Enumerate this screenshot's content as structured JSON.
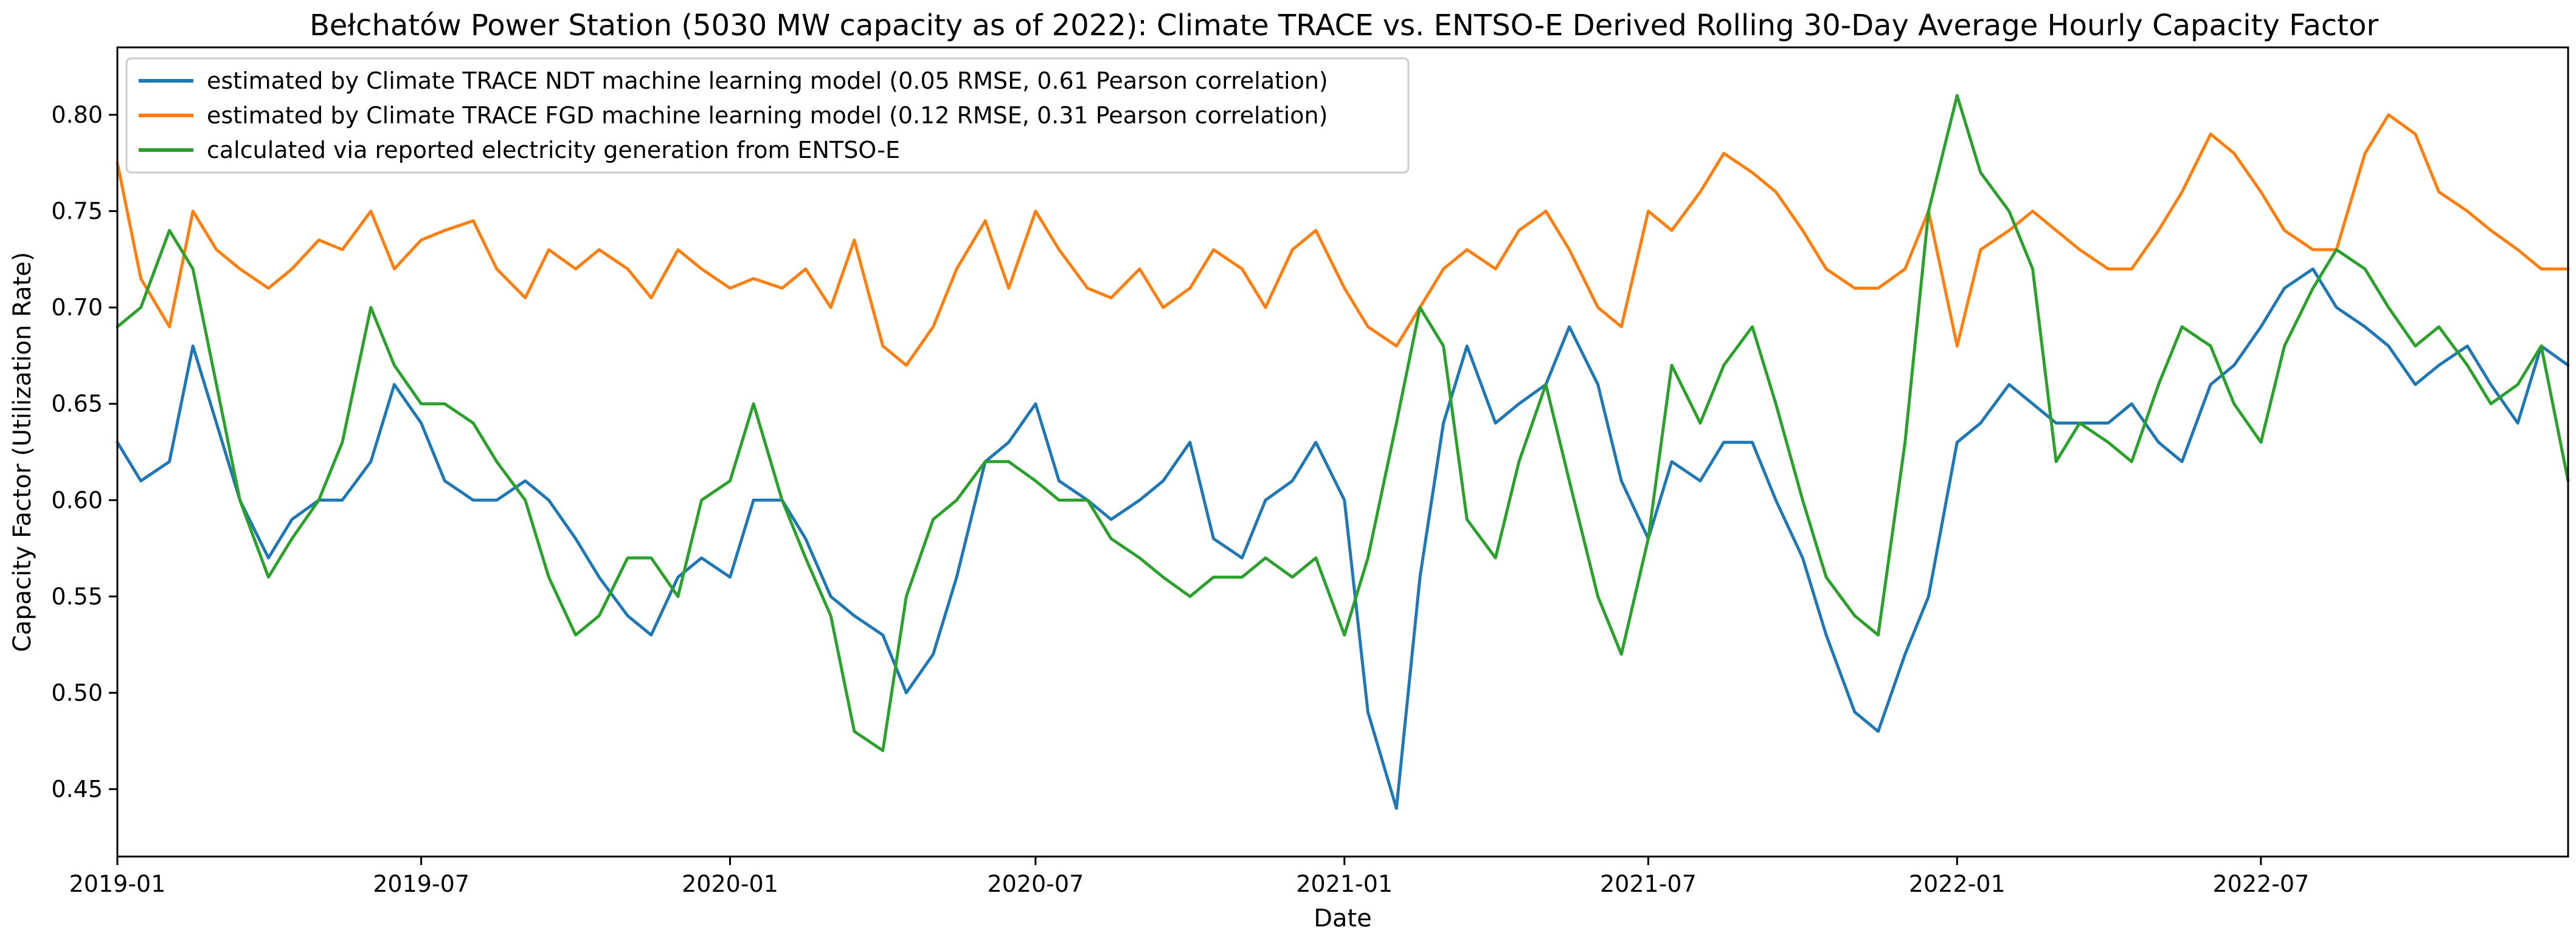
{
  "chart_data": {
    "type": "line",
    "title": "Bełchatów Power Station (5030 MW capacity as of 2022): Climate TRACE vs. ENTSO-E Derived Rolling 30-Day Average Hourly Capacity Factor",
    "xlabel": "Date",
    "ylabel": "Capacity Factor (Utilization Rate)",
    "xlim": [
      "2019-01-01",
      "2022-12-31"
    ],
    "ylim": [
      0.415,
      0.835
    ],
    "x_ticks": [
      "2019-01",
      "2019-07",
      "2020-01",
      "2020-07",
      "2021-01",
      "2021-07",
      "2022-01",
      "2022-07"
    ],
    "y_ticks": [
      "0.45",
      "0.50",
      "0.55",
      "0.60",
      "0.65",
      "0.70",
      "0.75",
      "0.80"
    ],
    "grid": false,
    "legend_position": "top-left",
    "x_step": "approximately 2 weeks (24 points per year)",
    "series": [
      {
        "name": "estimated by Climate TRACE NDT machine learning model (0.05 RMSE, 0.61 Pearson correlation)",
        "color": "#1f77b4",
        "x": [
          "2019-01-01",
          "2019-01-15",
          "2019-02-01",
          "2019-02-15",
          "2019-03-01",
          "2019-03-15",
          "2019-04-01",
          "2019-04-15",
          "2019-05-01",
          "2019-05-15",
          "2019-06-01",
          "2019-06-15",
          "2019-07-01",
          "2019-07-15",
          "2019-08-01",
          "2019-08-15",
          "2019-09-01",
          "2019-09-15",
          "2019-10-01",
          "2019-10-15",
          "2019-11-01",
          "2019-11-15",
          "2019-12-01",
          "2019-12-15",
          "2020-01-01",
          "2020-01-15",
          "2020-02-01",
          "2020-02-15",
          "2020-03-01",
          "2020-03-15",
          "2020-04-01",
          "2020-04-15",
          "2020-05-01",
          "2020-05-15",
          "2020-06-01",
          "2020-06-15",
          "2020-07-01",
          "2020-07-15",
          "2020-08-01",
          "2020-08-15",
          "2020-09-01",
          "2020-09-15",
          "2020-10-01",
          "2020-10-15",
          "2020-11-01",
          "2020-11-15",
          "2020-12-01",
          "2020-12-15",
          "2021-01-01",
          "2021-01-15",
          "2021-02-01",
          "2021-02-15",
          "2021-03-01",
          "2021-03-15",
          "2021-04-01",
          "2021-04-15",
          "2021-05-01",
          "2021-05-15",
          "2021-06-01",
          "2021-06-15",
          "2021-07-01",
          "2021-07-15",
          "2021-08-01",
          "2021-08-15",
          "2021-09-01",
          "2021-09-15",
          "2021-10-01",
          "2021-10-15",
          "2021-11-01",
          "2021-11-15",
          "2021-12-01",
          "2021-12-15",
          "2022-01-01",
          "2022-01-15",
          "2022-02-01",
          "2022-02-15",
          "2022-03-01",
          "2022-03-15",
          "2022-04-01",
          "2022-04-15",
          "2022-05-01",
          "2022-05-15",
          "2022-06-01",
          "2022-06-15",
          "2022-07-01",
          "2022-07-15",
          "2022-08-01",
          "2022-08-15",
          "2022-09-01",
          "2022-09-15",
          "2022-10-01",
          "2022-10-15",
          "2022-11-01",
          "2022-11-15",
          "2022-12-01",
          "2022-12-15",
          "2022-12-31"
        ],
        "values": [
          0.63,
          0.61,
          0.62,
          0.68,
          0.64,
          0.6,
          0.57,
          0.59,
          0.6,
          0.6,
          0.62,
          0.66,
          0.64,
          0.61,
          0.6,
          0.6,
          0.61,
          0.6,
          0.58,
          0.56,
          0.54,
          0.53,
          0.56,
          0.57,
          0.56,
          0.6,
          0.6,
          0.58,
          0.55,
          0.54,
          0.53,
          0.5,
          0.52,
          0.56,
          0.62,
          0.63,
          0.65,
          0.61,
          0.6,
          0.59,
          0.6,
          0.61,
          0.63,
          0.58,
          0.57,
          0.6,
          0.61,
          0.63,
          0.6,
          0.49,
          0.44,
          0.56,
          0.64,
          0.68,
          0.64,
          0.65,
          0.66,
          0.69,
          0.66,
          0.61,
          0.58,
          0.62,
          0.61,
          0.63,
          0.63,
          0.6,
          0.57,
          0.53,
          0.49,
          0.48,
          0.52,
          0.55,
          0.63,
          0.64,
          0.66,
          0.65,
          0.64,
          0.64,
          0.64,
          0.65,
          0.63,
          0.62,
          0.66,
          0.67,
          0.69,
          0.71,
          0.72,
          0.7,
          0.69,
          0.68,
          0.66,
          0.67,
          0.68,
          0.66,
          0.64,
          0.68,
          0.67
        ]
      },
      {
        "name": "estimated by Climate TRACE FGD  machine learning model (0.12 RMSE, 0.31 Pearson correlation)",
        "color": "#ff7f0e",
        "x": [
          "2019-01-01",
          "2019-01-15",
          "2019-02-01",
          "2019-02-15",
          "2019-03-01",
          "2019-03-15",
          "2019-04-01",
          "2019-04-15",
          "2019-05-01",
          "2019-05-15",
          "2019-06-01",
          "2019-06-15",
          "2019-07-01",
          "2019-07-15",
          "2019-08-01",
          "2019-08-15",
          "2019-09-01",
          "2019-09-15",
          "2019-10-01",
          "2019-10-15",
          "2019-11-01",
          "2019-11-15",
          "2019-12-01",
          "2019-12-15",
          "2020-01-01",
          "2020-01-15",
          "2020-02-01",
          "2020-02-15",
          "2020-03-01",
          "2020-03-15",
          "2020-04-01",
          "2020-04-15",
          "2020-05-01",
          "2020-05-15",
          "2020-06-01",
          "2020-06-15",
          "2020-07-01",
          "2020-07-15",
          "2020-08-01",
          "2020-08-15",
          "2020-09-01",
          "2020-09-15",
          "2020-10-01",
          "2020-10-15",
          "2020-11-01",
          "2020-11-15",
          "2020-12-01",
          "2020-12-15",
          "2021-01-01",
          "2021-01-15",
          "2021-02-01",
          "2021-02-15",
          "2021-03-01",
          "2021-03-15",
          "2021-04-01",
          "2021-04-15",
          "2021-05-01",
          "2021-05-15",
          "2021-06-01",
          "2021-06-15",
          "2021-07-01",
          "2021-07-15",
          "2021-08-01",
          "2021-08-15",
          "2021-09-01",
          "2021-09-15",
          "2021-10-01",
          "2021-10-15",
          "2021-11-01",
          "2021-11-15",
          "2021-12-01",
          "2021-12-15",
          "2022-01-01",
          "2022-01-15",
          "2022-02-01",
          "2022-02-15",
          "2022-03-01",
          "2022-03-15",
          "2022-04-01",
          "2022-04-15",
          "2022-05-01",
          "2022-05-15",
          "2022-06-01",
          "2022-06-15",
          "2022-07-01",
          "2022-07-15",
          "2022-08-01",
          "2022-08-15",
          "2022-09-01",
          "2022-09-15",
          "2022-10-01",
          "2022-10-15",
          "2022-11-01",
          "2022-11-15",
          "2022-12-01",
          "2022-12-15",
          "2022-12-31"
        ],
        "values": [
          0.775,
          0.715,
          0.69,
          0.75,
          0.73,
          0.72,
          0.71,
          0.72,
          0.735,
          0.73,
          0.75,
          0.72,
          0.735,
          0.74,
          0.745,
          0.72,
          0.705,
          0.73,
          0.72,
          0.73,
          0.72,
          0.705,
          0.73,
          0.72,
          0.71,
          0.715,
          0.71,
          0.72,
          0.7,
          0.735,
          0.68,
          0.67,
          0.69,
          0.72,
          0.745,
          0.71,
          0.75,
          0.73,
          0.71,
          0.705,
          0.72,
          0.7,
          0.71,
          0.73,
          0.72,
          0.7,
          0.73,
          0.74,
          0.71,
          0.69,
          0.68,
          0.7,
          0.72,
          0.73,
          0.72,
          0.74,
          0.75,
          0.73,
          0.7,
          0.69,
          0.75,
          0.74,
          0.76,
          0.78,
          0.77,
          0.76,
          0.74,
          0.72,
          0.71,
          0.71,
          0.72,
          0.75,
          0.68,
          0.73,
          0.74,
          0.75,
          0.74,
          0.73,
          0.72,
          0.72,
          0.74,
          0.76,
          0.79,
          0.78,
          0.76,
          0.74,
          0.73,
          0.73,
          0.78,
          0.8,
          0.79,
          0.76,
          0.75,
          0.74,
          0.73,
          0.72,
          0.72
        ]
      },
      {
        "name": "calculated via reported electricity generation from ENTSO-E",
        "color": "#2ca02c",
        "x": [
          "2019-01-01",
          "2019-01-15",
          "2019-02-01",
          "2019-02-15",
          "2019-03-01",
          "2019-03-15",
          "2019-04-01",
          "2019-04-15",
          "2019-05-01",
          "2019-05-15",
          "2019-06-01",
          "2019-06-15",
          "2019-07-01",
          "2019-07-15",
          "2019-08-01",
          "2019-08-15",
          "2019-09-01",
          "2019-09-15",
          "2019-10-01",
          "2019-10-15",
          "2019-11-01",
          "2019-11-15",
          "2019-12-01",
          "2019-12-15",
          "2020-01-01",
          "2020-01-15",
          "2020-02-01",
          "2020-02-15",
          "2020-03-01",
          "2020-03-15",
          "2020-04-01",
          "2020-04-15",
          "2020-05-01",
          "2020-05-15",
          "2020-06-01",
          "2020-06-15",
          "2020-07-01",
          "2020-07-15",
          "2020-08-01",
          "2020-08-15",
          "2020-09-01",
          "2020-09-15",
          "2020-10-01",
          "2020-10-15",
          "2020-11-01",
          "2020-11-15",
          "2020-12-01",
          "2020-12-15",
          "2021-01-01",
          "2021-01-15",
          "2021-02-01",
          "2021-02-15",
          "2021-03-01",
          "2021-03-15",
          "2021-04-01",
          "2021-04-15",
          "2021-05-01",
          "2021-05-15",
          "2021-06-01",
          "2021-06-15",
          "2021-07-01",
          "2021-07-15",
          "2021-08-01",
          "2021-08-15",
          "2021-09-01",
          "2021-09-15",
          "2021-10-01",
          "2021-10-15",
          "2021-11-01",
          "2021-11-15",
          "2021-12-01",
          "2021-12-15",
          "2022-01-01",
          "2022-01-15",
          "2022-02-01",
          "2022-02-15",
          "2022-03-01",
          "2022-03-15",
          "2022-04-01",
          "2022-04-15",
          "2022-05-01",
          "2022-05-15",
          "2022-06-01",
          "2022-06-15",
          "2022-07-01",
          "2022-07-15",
          "2022-08-01",
          "2022-08-15",
          "2022-09-01",
          "2022-09-15",
          "2022-10-01",
          "2022-10-15",
          "2022-11-01",
          "2022-11-15",
          "2022-12-01",
          "2022-12-15",
          "2022-12-31"
        ],
        "values": [
          0.69,
          0.7,
          0.74,
          0.72,
          0.66,
          0.6,
          0.56,
          0.58,
          0.6,
          0.63,
          0.7,
          0.67,
          0.65,
          0.65,
          0.64,
          0.62,
          0.6,
          0.56,
          0.53,
          0.54,
          0.57,
          0.57,
          0.55,
          0.6,
          0.61,
          0.65,
          0.6,
          0.57,
          0.54,
          0.48,
          0.47,
          0.55,
          0.59,
          0.6,
          0.62,
          0.62,
          0.61,
          0.6,
          0.6,
          0.58,
          0.57,
          0.56,
          0.55,
          0.56,
          0.56,
          0.57,
          0.56,
          0.57,
          0.53,
          0.57,
          0.64,
          0.7,
          0.68,
          0.59,
          0.57,
          0.62,
          0.66,
          0.61,
          0.55,
          0.52,
          0.58,
          0.67,
          0.64,
          0.67,
          0.69,
          0.65,
          0.6,
          0.56,
          0.54,
          0.53,
          0.63,
          0.75,
          0.81,
          0.77,
          0.75,
          0.72,
          0.62,
          0.64,
          0.63,
          0.62,
          0.66,
          0.69,
          0.68,
          0.65,
          0.63,
          0.68,
          0.71,
          0.73,
          0.72,
          0.7,
          0.68,
          0.69,
          0.67,
          0.65,
          0.66,
          0.68,
          0.61
        ]
      }
    ]
  }
}
